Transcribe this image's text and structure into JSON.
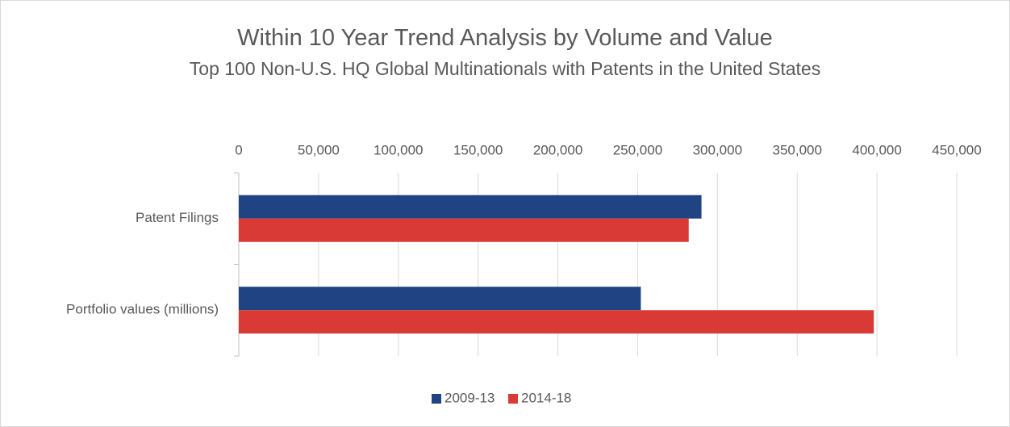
{
  "chart_data": {
    "type": "hbar",
    "title": "Within 10 Year Trend Analysis by Volume and Value",
    "subtitle": "Top 100 Non-U.S. HQ Global Multinationals with Patents in the United States",
    "categories": [
      "Patent Filings",
      "Portfolio values (millions)"
    ],
    "series": [
      {
        "name": "2009-13",
        "color": "#1f4383",
        "values": [
          290000,
          252000
        ]
      },
      {
        "name": "2014-18",
        "color": "#d93a35",
        "values": [
          282000,
          398000
        ]
      }
    ],
    "xlim": [
      0,
      450000
    ],
    "xticks": [
      0,
      {
        "value": 50000,
        "label": "50,000"
      },
      {
        "value": 100000,
        "label": "100,000"
      },
      {
        "value": 150000,
        "label": "150,000"
      },
      {
        "value": 200000,
        "label": "200,000"
      },
      {
        "value": 250000,
        "label": "250,000"
      },
      {
        "value": 300000,
        "label": "300,000"
      },
      {
        "value": 350000,
        "label": "350,000"
      },
      {
        "value": 400000,
        "label": "400,000"
      },
      {
        "value": 450000,
        "label": "450,000"
      }
    ],
    "grid": true,
    "legend": "bottom"
  }
}
